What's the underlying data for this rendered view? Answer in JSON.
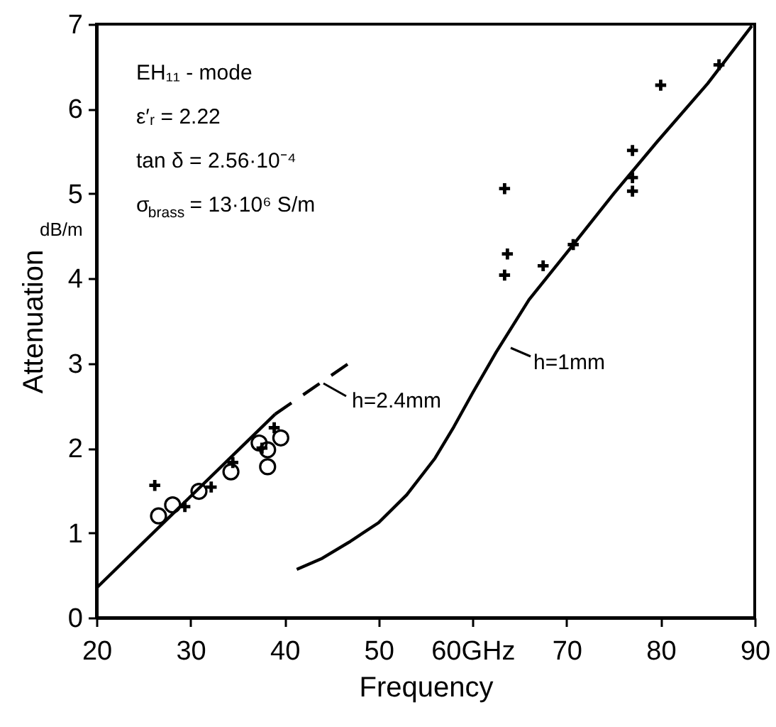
{
  "chart_data": {
    "type": "scatter",
    "xlabel": "Frequency",
    "ylabel": "Attenuation",
    "xlim": [
      20,
      90
    ],
    "xticks": [
      20,
      30,
      40,
      50,
      {
        "value": 60,
        "label": "60GHz"
      },
      70,
      80,
      90
    ],
    "ylim": [
      0,
      7
    ],
    "yticks": [
      0,
      1,
      2,
      3,
      4,
      5,
      6,
      7
    ],
    "grid": false,
    "annotations": [
      "EH₁₁ - mode",
      "ε′ᵣ = 2.22",
      "tan δ = 2.56·10⁻⁴",
      "σ$_{brass}$ = 13·10⁶ S/m",
      "dB/m",
      "h=2.4mm",
      "h=1mm"
    ],
    "series": [
      {
        "type": "line",
        "color": "#000000",
        "line_style": "solid",
        "marker": "none",
        "x": [
          20,
          39
        ],
        "values": [
          0.35,
          2.4
        ]
      },
      {
        "type": "line",
        "color": "#000000",
        "line_style": "dashed",
        "marker": "none",
        "x": [
          39,
          47.1
        ],
        "values": [
          2.4,
          3.02
        ]
      },
      {
        "type": "line",
        "color": "#000000",
        "line_style": "solid",
        "marker": "none",
        "x": [
          41.3,
          44,
          47,
          50,
          53,
          56,
          58,
          60,
          62.5,
          66,
          70.7,
          75,
          79.6,
          85,
          89.7
        ],
        "values": [
          0.57,
          0.7,
          0.9,
          1.12,
          1.45,
          1.88,
          2.25,
          2.65,
          3.13,
          3.75,
          4.4,
          5.0,
          5.61,
          6.3,
          6.98
        ]
      },
      {
        "color": "#000000",
        "marker": "circle",
        "x": [
          26.6,
          28.1,
          30.9,
          34.3,
          37.3,
          38.2,
          38.2,
          39.6
        ],
        "values": [
          1.2,
          1.33,
          1.49,
          1.72,
          2.06,
          1.98,
          1.78,
          2.12
        ]
      },
      {
        "color": "#000000",
        "marker": "cross",
        "x": [
          26.2,
          29.4,
          32.2,
          34.5,
          37.6,
          38.9
        ],
        "values": [
          1.56,
          1.31,
          1.54,
          1.83,
          2.0,
          2.24
        ]
      },
      {
        "color": "#000000",
        "marker": "cross",
        "x": [
          63.4,
          63.7,
          63.4,
          67.5,
          70.7,
          77.0,
          77.0,
          77.0,
          80.0,
          86.2
        ],
        "values": [
          5.06,
          4.29,
          4.04,
          4.15,
          4.4,
          5.51,
          5.19,
          5.03,
          6.28,
          6.52
        ]
      }
    ]
  }
}
